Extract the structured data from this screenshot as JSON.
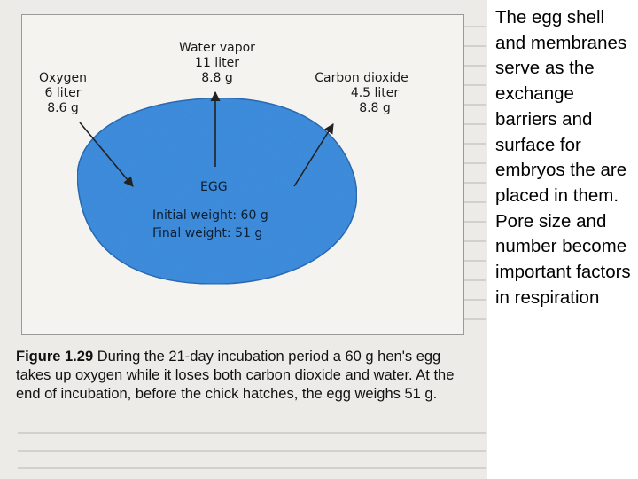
{
  "figure": {
    "egg_label": "EGG",
    "initial_weight": "Initial weight:  60 g",
    "final_weight": "Final weight:   51 g",
    "water_vapor": {
      "name": "Water vapor",
      "volume": "11 liter",
      "mass": "8.8 g"
    },
    "oxygen": {
      "name": "Oxygen",
      "volume": "6 liter",
      "mass": "8.6 g"
    },
    "carbon_dioxide": {
      "name": "Carbon dioxide",
      "volume": "4.5 liter",
      "mass": "8.8 g"
    },
    "colors": {
      "egg_fill": "#3f8fe0",
      "arrow": "#222222"
    }
  },
  "caption": {
    "label": "Figure 1.29",
    "text": "During the 21-day incubation period a 60 g hen's egg takes up oxygen while it loses both carbon dioxide and water. At the end of incubation, before the chick hatches, the egg weighs 51 g."
  },
  "side_note": {
    "text": "The egg shell and membranes serve as the exchange barriers and surface for embryos the are placed in them.  Pore size and number become important factors in respiration"
  }
}
